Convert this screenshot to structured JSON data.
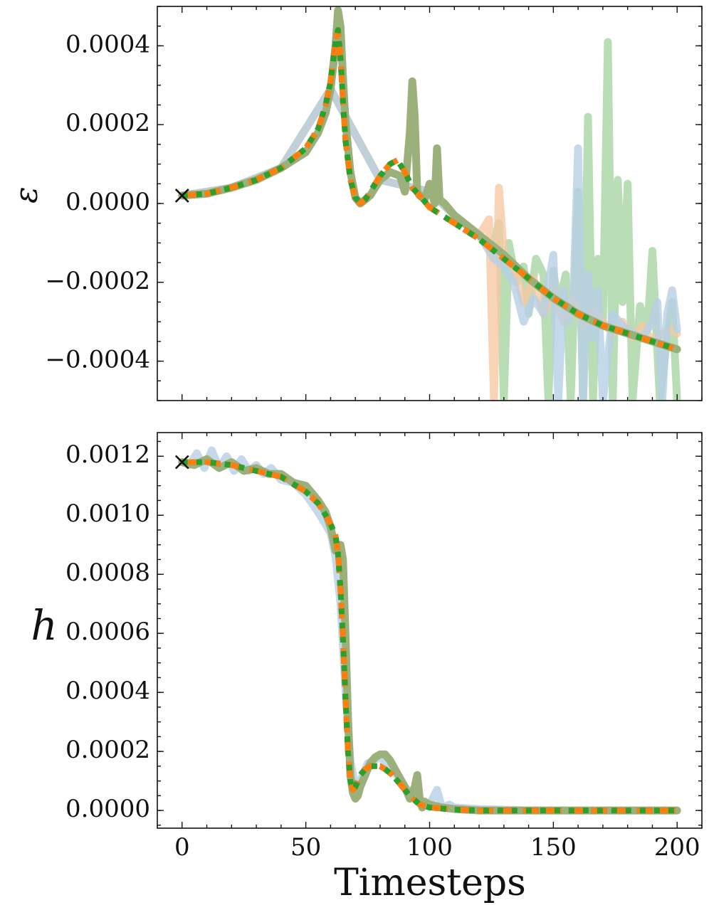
{
  "chart_data": [
    {
      "type": "line",
      "ylabel": "ε",
      "xlim": [
        -10,
        210
      ],
      "ylim": [
        -0.0005,
        0.0005
      ],
      "yticks": [
        -0.0004,
        -0.0002,
        0.0,
        0.0002,
        0.0004
      ],
      "ytick_labels": [
        "−0.0004",
        "−0.0002",
        "0.0000",
        "0.0002",
        "0.0004"
      ],
      "xticks": [
        0,
        50,
        100,
        150,
        200
      ],
      "grid": false,
      "marker": {
        "symbol": "×",
        "x": 0,
        "y": 2e-05
      },
      "series": [
        {
          "style": "thick-solid",
          "color": "#9bb07a",
          "x": [
            0,
            10,
            20,
            30,
            40,
            50,
            55,
            58,
            60,
            62,
            63,
            64,
            65,
            66,
            68,
            70,
            72,
            74,
            76,
            78,
            80,
            84,
            88,
            90,
            92,
            93,
            94,
            95,
            96,
            98,
            100,
            102,
            103,
            104,
            106,
            110,
            120,
            130,
            140,
            150,
            160,
            170,
            180,
            190,
            200
          ],
          "y": [
            2e-05,
            2.5e-05,
            4e-05,
            6e-05,
            9e-05,
            0.00013,
            0.00018,
            0.00023,
            0.00029,
            0.0004,
            0.00049,
            0.00045,
            0.00032,
            0.00021,
            8e-05,
            1.5e-05,
            0.0,
            1e-05,
            2e-05,
            4e-05,
            6e-05,
            8e-05,
            7e-05,
            3e-05,
            0.00018,
            0.00031,
            0.00022,
            3e-05,
            2e-05,
            1e-05,
            5e-05,
            0.0,
            0.00014,
            1e-05,
            0.0,
            -3e-05,
            -8e-05,
            -0.00013,
            -0.00019,
            -0.00024,
            -0.00028,
            -0.00031,
            -0.00033,
            -0.00035,
            -0.00037
          ]
        },
        {
          "style": "faded-noisy",
          "color": "#a8d5a3",
          "x": [
            0,
            20,
            40,
            60,
            80,
            100,
            110,
            120,
            125,
            128,
            130,
            132,
            135,
            138,
            140,
            143,
            146,
            148,
            150,
            152,
            155,
            157,
            160,
            162,
            164,
            166,
            168,
            170,
            172,
            174,
            176,
            178,
            180,
            182,
            185,
            188,
            190,
            193,
            196,
            198,
            200
          ],
          "y": [
            2e-05,
            4e-05,
            9e-05,
            0.00029,
            6e-05,
            3e-05,
            -3e-05,
            -8e-05,
            -0.00012,
            -5e-05,
            -0.0005,
            -0.0001,
            -0.0002,
            -0.00016,
            -0.00028,
            -0.00014,
            -0.00018,
            -0.0005,
            -0.00017,
            -0.00026,
            -0.00018,
            -0.0005,
            3e-05,
            -0.0005,
            0.00022,
            -0.0005,
            -0.00014,
            -0.0003,
            0.00041,
            -0.0005,
            6e-05,
            -0.00025,
            5e-05,
            -0.0005,
            -0.00026,
            -0.00032,
            -0.00012,
            -0.0005,
            -0.00034,
            -0.00025,
            -0.0005
          ]
        },
        {
          "style": "faded-noisy",
          "color": "#f6c8a3",
          "x": [
            0,
            20,
            40,
            60,
            80,
            100,
            110,
            120,
            124,
            126,
            128,
            130,
            134,
            138,
            142,
            146,
            150,
            154,
            158,
            162,
            166,
            170,
            174,
            178,
            182,
            186,
            190,
            194,
            198,
            200
          ],
          "y": [
            2e-05,
            4e-05,
            9e-05,
            0.00029,
            6e-05,
            3e-05,
            -3e-05,
            -8e-05,
            -4e-05,
            -0.0005,
            4e-05,
            -0.00013,
            -0.00016,
            -0.00025,
            -0.00019,
            -0.00028,
            -0.00022,
            -0.0003,
            -0.00024,
            -0.00031,
            -0.00027,
            -0.0003,
            -0.00033,
            -0.0003,
            -0.00034,
            -0.00031,
            -0.00035,
            -0.00033,
            -0.00032,
            -0.00033
          ]
        },
        {
          "style": "faded-noisy",
          "color": "#b7d0e6",
          "x": [
            0,
            20,
            40,
            60,
            80,
            100,
            110,
            120,
            126,
            130,
            134,
            138,
            142,
            146,
            150,
            152,
            154,
            156,
            158,
            160,
            162,
            164,
            166,
            168,
            170,
            174,
            178,
            182,
            186,
            190,
            192,
            194,
            196,
            198,
            200
          ],
          "y": [
            2e-05,
            4e-05,
            9e-05,
            0.00029,
            6e-05,
            3e-05,
            -3e-05,
            -8e-05,
            -0.00014,
            -0.00016,
            -0.0002,
            -0.0003,
            -0.00024,
            -0.00028,
            -0.00013,
            -0.0005,
            -0.00022,
            -0.0003,
            -0.00025,
            0.00014,
            -0.0005,
            -0.00018,
            -0.00034,
            -0.00022,
            -0.0005,
            -0.00028,
            -0.00031,
            -0.00033,
            -0.00034,
            -0.0003,
            -0.00025,
            -0.0005,
            -0.00028,
            -0.00022,
            -0.00032
          ]
        },
        {
          "style": "dashed",
          "color": "#1f77b4",
          "x": [
            0,
            10,
            20,
            30,
            40,
            50,
            55,
            58,
            60,
            62,
            63,
            64,
            65,
            66,
            68,
            70,
            72,
            74,
            76,
            78,
            80,
            84,
            87,
            90,
            93,
            96,
            100,
            110,
            120,
            130,
            140,
            150,
            160,
            170,
            180,
            190,
            200
          ],
          "y": [
            2e-05,
            2.5e-05,
            4e-05,
            6e-05,
            9e-05,
            0.00014,
            0.00019,
            0.00025,
            0.00031,
            0.00041,
            0.00044,
            0.00037,
            0.00026,
            0.00016,
            6e-05,
            1.5e-05,
            0.0,
            1e-05,
            3e-05,
            5e-05,
            7e-05,
            0.0001,
            0.00011,
            8e-05,
            4e-05,
            2e-05,
            -1e-05,
            -5e-05,
            -9e-05,
            -0.00014,
            -0.00019,
            -0.00024,
            -0.00028,
            -0.00031,
            -0.00033,
            -0.00035,
            -0.00037
          ]
        },
        {
          "style": "dashed",
          "color": "#ff7f0e",
          "x": [
            0,
            10,
            20,
            30,
            40,
            50,
            55,
            58,
            60,
            62,
            63,
            64,
            65,
            66,
            68,
            70,
            72,
            74,
            76,
            78,
            80,
            84,
            87,
            90,
            93,
            96,
            100,
            110,
            120,
            130,
            140,
            150,
            160,
            170,
            180,
            190,
            200
          ],
          "y": [
            2e-05,
            2.5e-05,
            4e-05,
            6e-05,
            9e-05,
            0.00014,
            0.00019,
            0.00025,
            0.00031,
            0.00041,
            0.00044,
            0.00037,
            0.00026,
            0.00016,
            6e-05,
            1.5e-05,
            0.0,
            1e-05,
            3e-05,
            5e-05,
            7e-05,
            0.0001,
            0.00011,
            8e-05,
            4e-05,
            2e-05,
            -1e-05,
            -5e-05,
            -9e-05,
            -0.00014,
            -0.00019,
            -0.00024,
            -0.00028,
            -0.00031,
            -0.00033,
            -0.00035,
            -0.00037
          ]
        },
        {
          "style": "dotted",
          "color": "#2ca02c",
          "x": [
            0,
            10,
            20,
            30,
            40,
            50,
            55,
            58,
            60,
            62,
            63,
            64,
            65,
            66,
            68,
            70,
            72,
            74,
            76,
            78,
            80,
            84,
            87,
            90,
            93,
            96,
            100,
            110,
            120,
            130,
            140,
            150,
            160,
            170,
            180,
            190,
            200
          ],
          "y": [
            2e-05,
            2.5e-05,
            4e-05,
            6e-05,
            9e-05,
            0.00014,
            0.00019,
            0.00025,
            0.00031,
            0.00041,
            0.00044,
            0.00037,
            0.00026,
            0.00016,
            6e-05,
            1.5e-05,
            0.0,
            1e-05,
            3e-05,
            5e-05,
            7e-05,
            0.0001,
            0.00011,
            8e-05,
            4e-05,
            2e-05,
            -1e-05,
            -5e-05,
            -9e-05,
            -0.00014,
            -0.00019,
            -0.00024,
            -0.00028,
            -0.00031,
            -0.00033,
            -0.00035,
            -0.00037
          ]
        }
      ]
    },
    {
      "type": "line",
      "ylabel": "h",
      "xlabel": "Timesteps",
      "xlim": [
        -10,
        210
      ],
      "ylim": [
        -6e-05,
        0.00128
      ],
      "yticks": [
        0.0,
        0.0002,
        0.0004,
        0.0006,
        0.0008,
        0.001,
        0.0012
      ],
      "ytick_labels": [
        "0.0000",
        "0.0002",
        "0.0004",
        "0.0006",
        "0.0008",
        "0.0010",
        "0.0012"
      ],
      "xticks": [
        0,
        50,
        100,
        150,
        200
      ],
      "xtick_labels": [
        "0",
        "50",
        "100",
        "150",
        "200"
      ],
      "grid": false,
      "marker": {
        "symbol": "×",
        "x": 0,
        "y": 0.00118
      },
      "series": [
        {
          "style": "faded-noisy",
          "color": "#b7d0e6",
          "x": [
            0,
            3,
            6,
            9,
            12,
            15,
            18,
            21,
            24,
            27,
            30,
            33,
            36,
            40,
            45,
            50,
            55,
            60,
            62,
            64,
            66,
            68,
            70,
            72,
            75,
            80,
            85,
            90,
            95,
            100,
            103,
            105,
            108,
            110,
            120,
            140,
            160,
            180,
            200
          ],
          "y": [
            0.00118,
            0.00117,
            0.00121,
            0.00116,
            0.00122,
            0.00116,
            0.0012,
            0.00115,
            0.00119,
            0.00115,
            0.00117,
            0.00114,
            0.00116,
            0.00112,
            0.00111,
            0.00107,
            0.00101,
            0.00094,
            0.00086,
            0.0007,
            0.00041,
            0.00017,
            8e-05,
            0.0001,
            0.00016,
            0.00018,
            0.00014,
            8e-05,
            3e-05,
            2e-05,
            7e-05,
            1e-05,
            2e-05,
            1e-05,
            5e-06,
            0.0,
            0.0,
            0.0,
            0.0
          ]
        },
        {
          "style": "thick-solid",
          "color": "#9bb07a",
          "x": [
            0,
            5,
            10,
            15,
            20,
            25,
            30,
            35,
            40,
            45,
            50,
            55,
            58,
            60,
            62,
            64,
            65,
            66,
            67,
            68,
            69,
            70,
            71,
            72,
            74,
            76,
            78,
            80,
            82,
            84,
            86,
            88,
            90,
            92,
            94,
            95,
            96,
            97,
            98,
            100,
            105,
            110,
            120,
            140,
            160,
            180,
            200
          ],
          "y": [
            0.00118,
            0.00117,
            0.00119,
            0.00116,
            0.00118,
            0.00115,
            0.00116,
            0.00114,
            0.00114,
            0.00111,
            0.0011,
            0.00105,
            0.00101,
            0.00096,
            0.00088,
            0.0009,
            0.00085,
            0.0006,
            0.00032,
            0.00012,
            6e-05,
            4e-05,
            5e-05,
            8e-05,
            0.00012,
            0.00016,
            0.00018,
            0.00019,
            0.00019,
            0.00017,
            0.00014,
            0.00011,
            8e-05,
            4e-05,
            8e-05,
            0.00012,
            4e-05,
            1e-05,
            3e-05,
            2e-05,
            1e-05,
            5e-06,
            0.0,
            0.0,
            0.0,
            0.0,
            0.0
          ]
        },
        {
          "style": "dashed",
          "color": "#1f77b4",
          "x": [
            0,
            10,
            20,
            30,
            40,
            50,
            55,
            58,
            60,
            62,
            63,
            64,
            65,
            66,
            67,
            68,
            69,
            70,
            71,
            72,
            74,
            76,
            78,
            80,
            82,
            85,
            88,
            92,
            96,
            100,
            110,
            120,
            140,
            160,
            180,
            200
          ],
          "y": [
            0.00118,
            0.00118,
            0.00117,
            0.00115,
            0.00113,
            0.00108,
            0.00104,
            0.001,
            0.00097,
            0.00093,
            0.00087,
            0.00075,
            0.00058,
            0.00038,
            0.0002,
            0.0001,
            7e-05,
            8e-05,
            0.0001,
            0.00012,
            0.00014,
            0.00015,
            0.00015,
            0.00015,
            0.00014,
            0.00012,
            9e-05,
            5e-05,
            2e-05,
            1e-05,
            3e-06,
            0.0,
            0.0,
            0.0,
            0.0,
            0.0
          ]
        },
        {
          "style": "dashed",
          "color": "#ff7f0e",
          "x": [
            0,
            10,
            20,
            30,
            40,
            50,
            55,
            58,
            60,
            62,
            63,
            64,
            65,
            66,
            67,
            68,
            69,
            70,
            71,
            72,
            74,
            76,
            78,
            80,
            82,
            85,
            88,
            92,
            96,
            100,
            110,
            120,
            140,
            160,
            180,
            200
          ],
          "y": [
            0.00118,
            0.00118,
            0.00117,
            0.00115,
            0.00113,
            0.00108,
            0.00104,
            0.001,
            0.00097,
            0.00093,
            0.00087,
            0.00075,
            0.00058,
            0.00038,
            0.0002,
            0.0001,
            7e-05,
            8e-05,
            0.0001,
            0.00012,
            0.00014,
            0.00015,
            0.00015,
            0.00015,
            0.00014,
            0.00012,
            9e-05,
            5e-05,
            2e-05,
            1e-05,
            3e-06,
            0.0,
            0.0,
            0.0,
            0.0,
            0.0
          ]
        },
        {
          "style": "dotted",
          "color": "#2ca02c",
          "x": [
            0,
            10,
            20,
            30,
            40,
            50,
            55,
            58,
            60,
            62,
            63,
            64,
            65,
            66,
            67,
            68,
            69,
            70,
            71,
            72,
            74,
            76,
            78,
            80,
            82,
            85,
            88,
            92,
            96,
            100,
            110,
            120,
            140,
            160,
            180,
            200
          ],
          "y": [
            0.00118,
            0.00118,
            0.00117,
            0.00115,
            0.00113,
            0.00108,
            0.00104,
            0.001,
            0.00097,
            0.00093,
            0.00087,
            0.00075,
            0.00058,
            0.00038,
            0.0002,
            0.0001,
            7e-05,
            8e-05,
            0.0001,
            0.00012,
            0.00014,
            0.00015,
            0.00015,
            0.00015,
            0.00014,
            0.00012,
            9e-05,
            5e-05,
            2e-05,
            1e-05,
            3e-06,
            0.0,
            0.0,
            0.0,
            0.0,
            0.0
          ]
        }
      ]
    }
  ]
}
